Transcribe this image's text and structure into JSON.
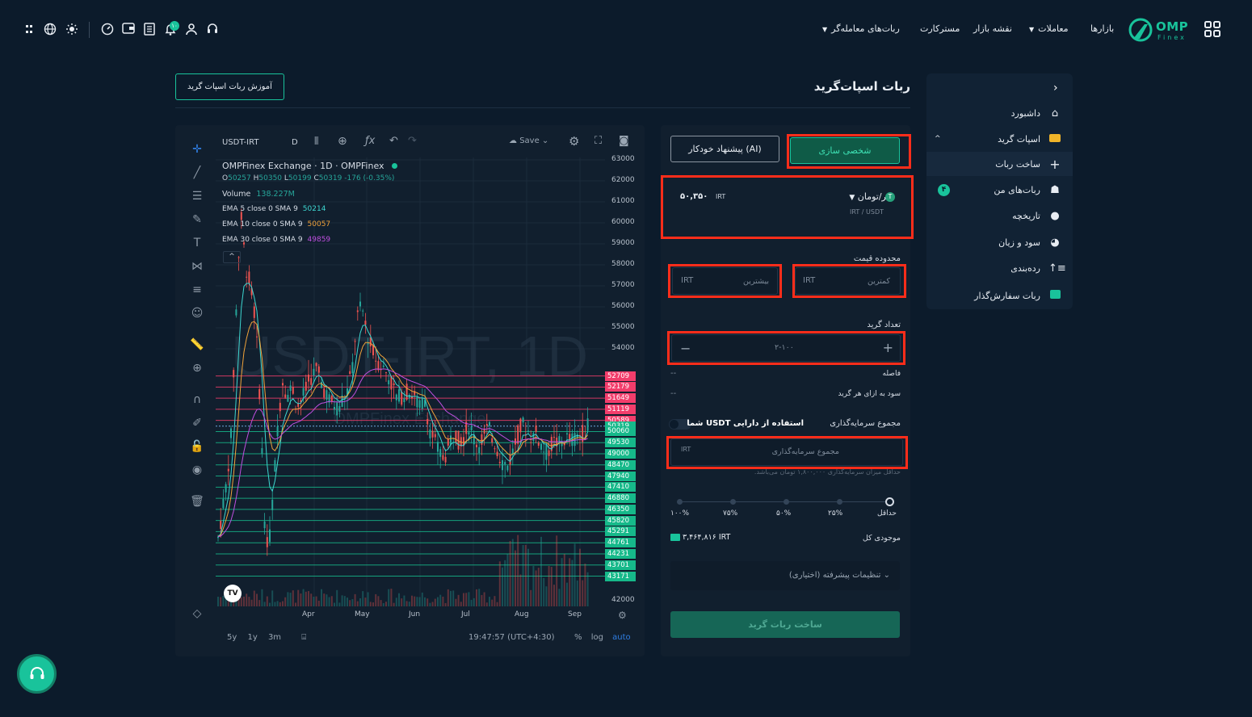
{
  "header": {
    "logo_text": "OMP",
    "logo_sub": "Finex",
    "nav": [
      {
        "label": "بازارها",
        "has_dropdown": false
      },
      {
        "label": "معاملات",
        "has_dropdown": true
      },
      {
        "label": "نقشه بازار",
        "has_dropdown": false
      },
      {
        "label": "مسترکارت",
        "has_dropdown": false
      },
      {
        "label": "ربات‌های معامله‌گر",
        "has_dropdown": true
      }
    ],
    "notification_count": "۱۰",
    "icons": [
      "grid-icon",
      "headset-icon",
      "user-icon",
      "bell-icon",
      "calculator-icon",
      "wallet-icon",
      "dashboard-gauge-icon",
      "sun-icon",
      "globe-icon",
      "settings-icon"
    ]
  },
  "page": {
    "title": "ربات اسپات‌گرید",
    "tutorial_button": "آموزش ربات اسپات گرید"
  },
  "sidebar": {
    "items": [
      {
        "label": "داشبورد",
        "icon": "home-icon"
      },
      {
        "label": "اسپات گرید",
        "icon": "spot-grid-icon",
        "expanded": true
      },
      {
        "label": "ساخت ربات",
        "icon": "plus-icon",
        "active": true
      },
      {
        "label": "ربات‌های من",
        "icon": "robot-icon",
        "badge": "۴"
      },
      {
        "label": "تاریخچه",
        "icon": "clock-icon"
      },
      {
        "label": "سود و زیان",
        "icon": "pie-icon"
      },
      {
        "label": "رده‌بندی",
        "icon": "ranking-icon"
      },
      {
        "label": "ربات سفارش‌گذار",
        "icon": "order-bot-icon"
      }
    ]
  },
  "chart": {
    "symbol": "USDT-IRT",
    "interval": "D",
    "save_label": "Save",
    "title_line": "OMPFinex Exchange · 1D · OMPFinex",
    "ohlc": {
      "o": "50257",
      "h": "50350",
      "l": "50199",
      "c": "50319",
      "change": "-176 (-0.35%)"
    },
    "volume_label": "Volume",
    "volume_value": "138.227M",
    "indicators": [
      {
        "label": "EMA 5 close 0 SMA 9",
        "value": "50214",
        "color": "#3dd6d0"
      },
      {
        "label": "EMA 10 close 0 SMA 9",
        "value": "50057",
        "color": "#f0a23a"
      },
      {
        "label": "EMA 30 close 0 SMA 9",
        "value": "49859",
        "color": "#c04fe0"
      }
    ],
    "watermark": "USDT-IRT, 1D",
    "watermark_sub": "OMPFinex Exchange",
    "y_ticks": [
      "63000",
      "62000",
      "61000",
      "60000",
      "59000",
      "58000",
      "57000",
      "56000",
      "55000",
      "54000",
      "42000"
    ],
    "sell_levels": [
      "52709",
      "52179",
      "51649",
      "51119",
      "50589"
    ],
    "current_price": "50319",
    "buy_levels": [
      "50060",
      "49530",
      "49000",
      "48470",
      "47940",
      "47410",
      "46880",
      "46350",
      "45820",
      "45291",
      "44761",
      "44231",
      "43701",
      "43171"
    ],
    "x_ticks": [
      "Apr",
      "May",
      "Jun",
      "Jul",
      "Aug",
      "Sep"
    ],
    "ranges": [
      "5y",
      "1y",
      "3m"
    ],
    "time": "19:47:57 (UTC+4:30)",
    "scale_options": [
      "%",
      "log",
      "auto"
    ],
    "colors": {
      "up": "#26a69a",
      "down": "#ef5350",
      "sell_tag": "#f23d6b",
      "buy_tag": "#16b98a"
    }
  },
  "form": {
    "tab_custom": "شخصی سازی",
    "tab_ai": "پیشنهاد خودکار (AI)",
    "pair_name": "تتر/تومان",
    "pair_sub": "IRT / USDT",
    "pair_price": "۵۰,۳۵۰",
    "pair_unit": "IRT",
    "price_range_label": "محدوده قیمت",
    "min_placeholder": "کمترین",
    "max_placeholder": "بیشترین",
    "currency": "IRT",
    "grid_count_label": "تعداد گرید",
    "grid_count_placeholder": "۲-۱۰۰",
    "spacing_label": "فاصله",
    "spacing_value": "--",
    "profit_label": "سود به ازای هر گرید",
    "profit_value": "--",
    "investment_label": "مجموع سرمایه‌گذاری",
    "use_usdt_label": "استفاده از دارایی USDT شما",
    "investment_placeholder": "مجموع سرمایه‌گذاری",
    "min_note": "حداقل میزان سرمایه‌گذاری ۱,۸۰۰,۰۰۰ تومان می‌باشد.",
    "slider_labels": [
      "حداقل",
      "۲۵%",
      "۵۰%",
      "۷۵%",
      "۱۰۰%"
    ],
    "balance_label": "موجودی کل",
    "balance_value": "۳,۴۶۴,۸۱۶",
    "advanced_label": "تنظیمات پیشرفته (اختیاری)",
    "submit_label": "ساخت ربات گرید"
  }
}
